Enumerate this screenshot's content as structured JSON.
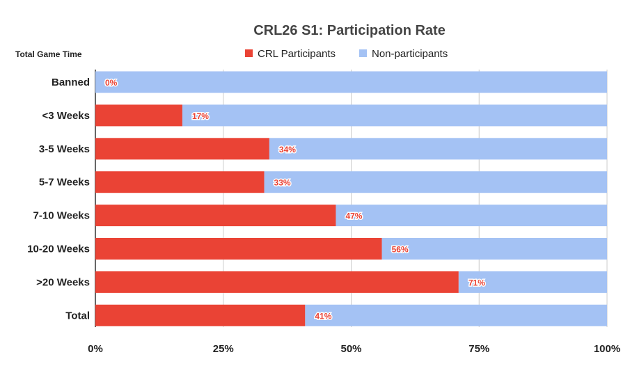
{
  "chart_data": {
    "type": "bar",
    "orientation": "horizontal",
    "stacked": "percent",
    "title": "CRL26 S1: Participation Rate",
    "ylabel": "Total Game Time",
    "xlabel": "",
    "categories": [
      "Banned",
      "<3 Weeks",
      "3-5 Weeks",
      "5-7 Weeks",
      "7-10 Weeks",
      "10-20 Weeks",
      ">20 Weeks",
      "Total"
    ],
    "series": [
      {
        "name": "CRL Participants",
        "color": "#ea4335",
        "values": [
          0,
          17,
          34,
          33,
          47,
          56,
          71,
          41
        ]
      },
      {
        "name": "Non-participants",
        "color": "#a4c2f4",
        "values": [
          100,
          83,
          66,
          67,
          53,
          44,
          29,
          59
        ]
      }
    ],
    "data_labels": [
      "0%",
      "17%",
      "34%",
      "33%",
      "47%",
      "56%",
      "71%",
      "41%"
    ],
    "xlim": [
      0,
      100
    ],
    "xticks": [
      "0%",
      "25%",
      "50%",
      "75%",
      "100%"
    ],
    "grid": true,
    "legend": "top"
  }
}
